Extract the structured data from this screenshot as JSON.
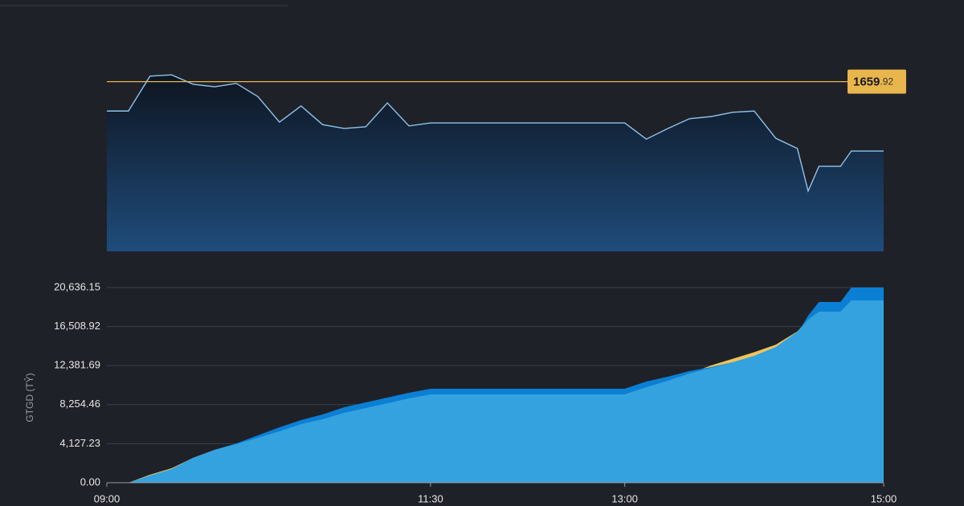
{
  "chart_data": [
    {
      "type": "line",
      "x": [
        "09:00",
        "09:10",
        "09:20",
        "09:30",
        "09:40",
        "09:50",
        "10:00",
        "10:10",
        "10:20",
        "10:30",
        "10:40",
        "10:50",
        "11:00",
        "11:10",
        "11:20",
        "11:30",
        "12:00",
        "12:30",
        "13:00",
        "13:10",
        "13:20",
        "13:30",
        "13:40",
        "13:50",
        "14:00",
        "14:10",
        "14:20",
        "14:25",
        "14:30",
        "14:40",
        "14:45",
        "15:00"
      ],
      "series": [
        {
          "color": "#8cc4ee",
          "values": [
            1653.0,
            1653.0,
            1661.2,
            1661.5,
            1659.3,
            1658.7,
            1659.5,
            1656.4,
            1650.4,
            1654.2,
            1649.8,
            1648.9,
            1649.3,
            1654.9,
            1649.5,
            1650.2,
            1650.2,
            1650.2,
            1650.2,
            1646.4,
            1648.9,
            1651.2,
            1651.7,
            1652.7,
            1653.0,
            1646.6,
            1644.2,
            1634.2,
            1640.0,
            1640.0,
            1643.6,
            1643.6
          ]
        }
      ],
      "xlim": [
        "09:00",
        "15:00"
      ],
      "ylim": [
        1620,
        1664
      ],
      "ref_line": {
        "value": 1659.92,
        "color": "#e8b64c"
      }
    },
    {
      "type": "area",
      "y_label": "GTGD (TỶ)",
      "x": [
        "09:00",
        "09:10",
        "09:20",
        "09:30",
        "09:40",
        "09:50",
        "10:00",
        "10:10",
        "10:20",
        "10:30",
        "10:40",
        "10:50",
        "11:00",
        "11:10",
        "11:20",
        "11:30",
        "12:00",
        "12:30",
        "13:00",
        "13:10",
        "13:20",
        "13:30",
        "13:40",
        "13:50",
        "14:00",
        "14:10",
        "14:20",
        "14:25",
        "14:30",
        "14:40",
        "14:45",
        "15:00"
      ],
      "series": [
        {
          "color": "#f0c35a",
          "values": [
            0,
            0,
            850,
            1530,
            2633,
            3482,
            4076,
            4756,
            5435,
            6199,
            6709,
            7388,
            7898,
            8407,
            8917,
            9342,
            9342,
            9342,
            9342,
            10106,
            10785,
            11549,
            12400,
            13100,
            13800,
            14600,
            16000,
            17239,
            18088,
            18088,
            19277,
            19277
          ]
        },
        {
          "color": "#0b7fd4",
          "values": [
            0,
            0,
            680,
            1359,
            2548,
            3482,
            4160,
            5010,
            5860,
            6624,
            7218,
            7983,
            8492,
            9002,
            9512,
            9936,
            9936,
            9936,
            9936,
            10700,
            11210,
            11804,
            12229,
            12738,
            13248,
            14012,
            15796,
            17664,
            19108,
            19108,
            20636,
            20636
          ]
        },
        {
          "color": "#34a2df",
          "values": [
            0,
            0,
            764,
            1444,
            2633,
            3482,
            4076,
            4756,
            5435,
            6199,
            6709,
            7388,
            7898,
            8407,
            8917,
            9342,
            9342,
            9342,
            9342,
            10106,
            10785,
            11549,
            12144,
            12738,
            13418,
            14352,
            15966,
            17239,
            18088,
            18088,
            19277,
            19277
          ]
        }
      ],
      "xlim": [
        "09:00",
        "15:00"
      ],
      "xticks": [
        "09:00",
        "11:30",
        "13:00",
        "15:00"
      ],
      "ylim": [
        0,
        20636.15
      ],
      "yticks": [
        {
          "value": 0,
          "label": "0.00"
        },
        {
          "value": 4127.23,
          "label": "4,127.23"
        },
        {
          "value": 8254.46,
          "label": "8,254.46"
        },
        {
          "value": 12381.69,
          "label": "12,381.69"
        },
        {
          "value": 16508.92,
          "label": "16,508.92"
        },
        {
          "value": 20636.15,
          "label": "20,636.15"
        }
      ],
      "grid": true
    }
  ]
}
